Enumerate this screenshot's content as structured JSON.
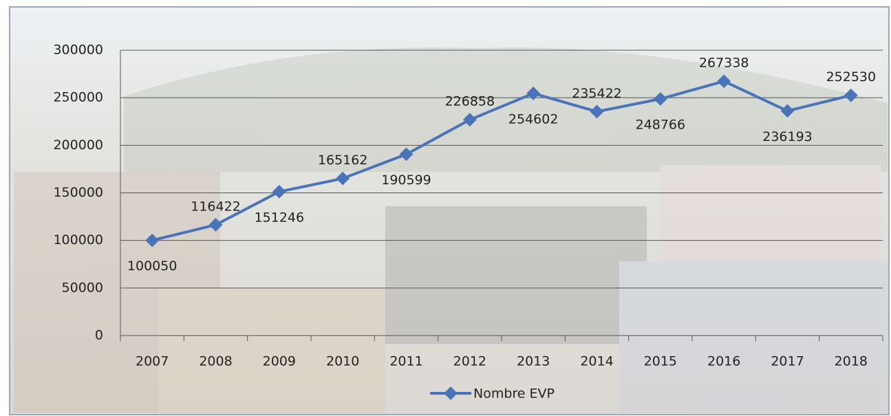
{
  "chart_data": {
    "type": "line",
    "categories": [
      "2007",
      "2008",
      "2009",
      "2010",
      "2011",
      "2012",
      "2013",
      "2014",
      "2015",
      "2016",
      "2017",
      "2018"
    ],
    "series": [
      {
        "name": "Nombre EVP",
        "color": "#4a74b8",
        "values": [
          100050,
          116422,
          151246,
          165162,
          190599,
          226858,
          254602,
          235422,
          248766,
          267338,
          236193,
          252530
        ]
      }
    ],
    "ylim": [
      0,
      300000
    ],
    "yticks": [
      0,
      50000,
      100000,
      150000,
      200000,
      250000,
      300000
    ],
    "grid": true
  }
}
